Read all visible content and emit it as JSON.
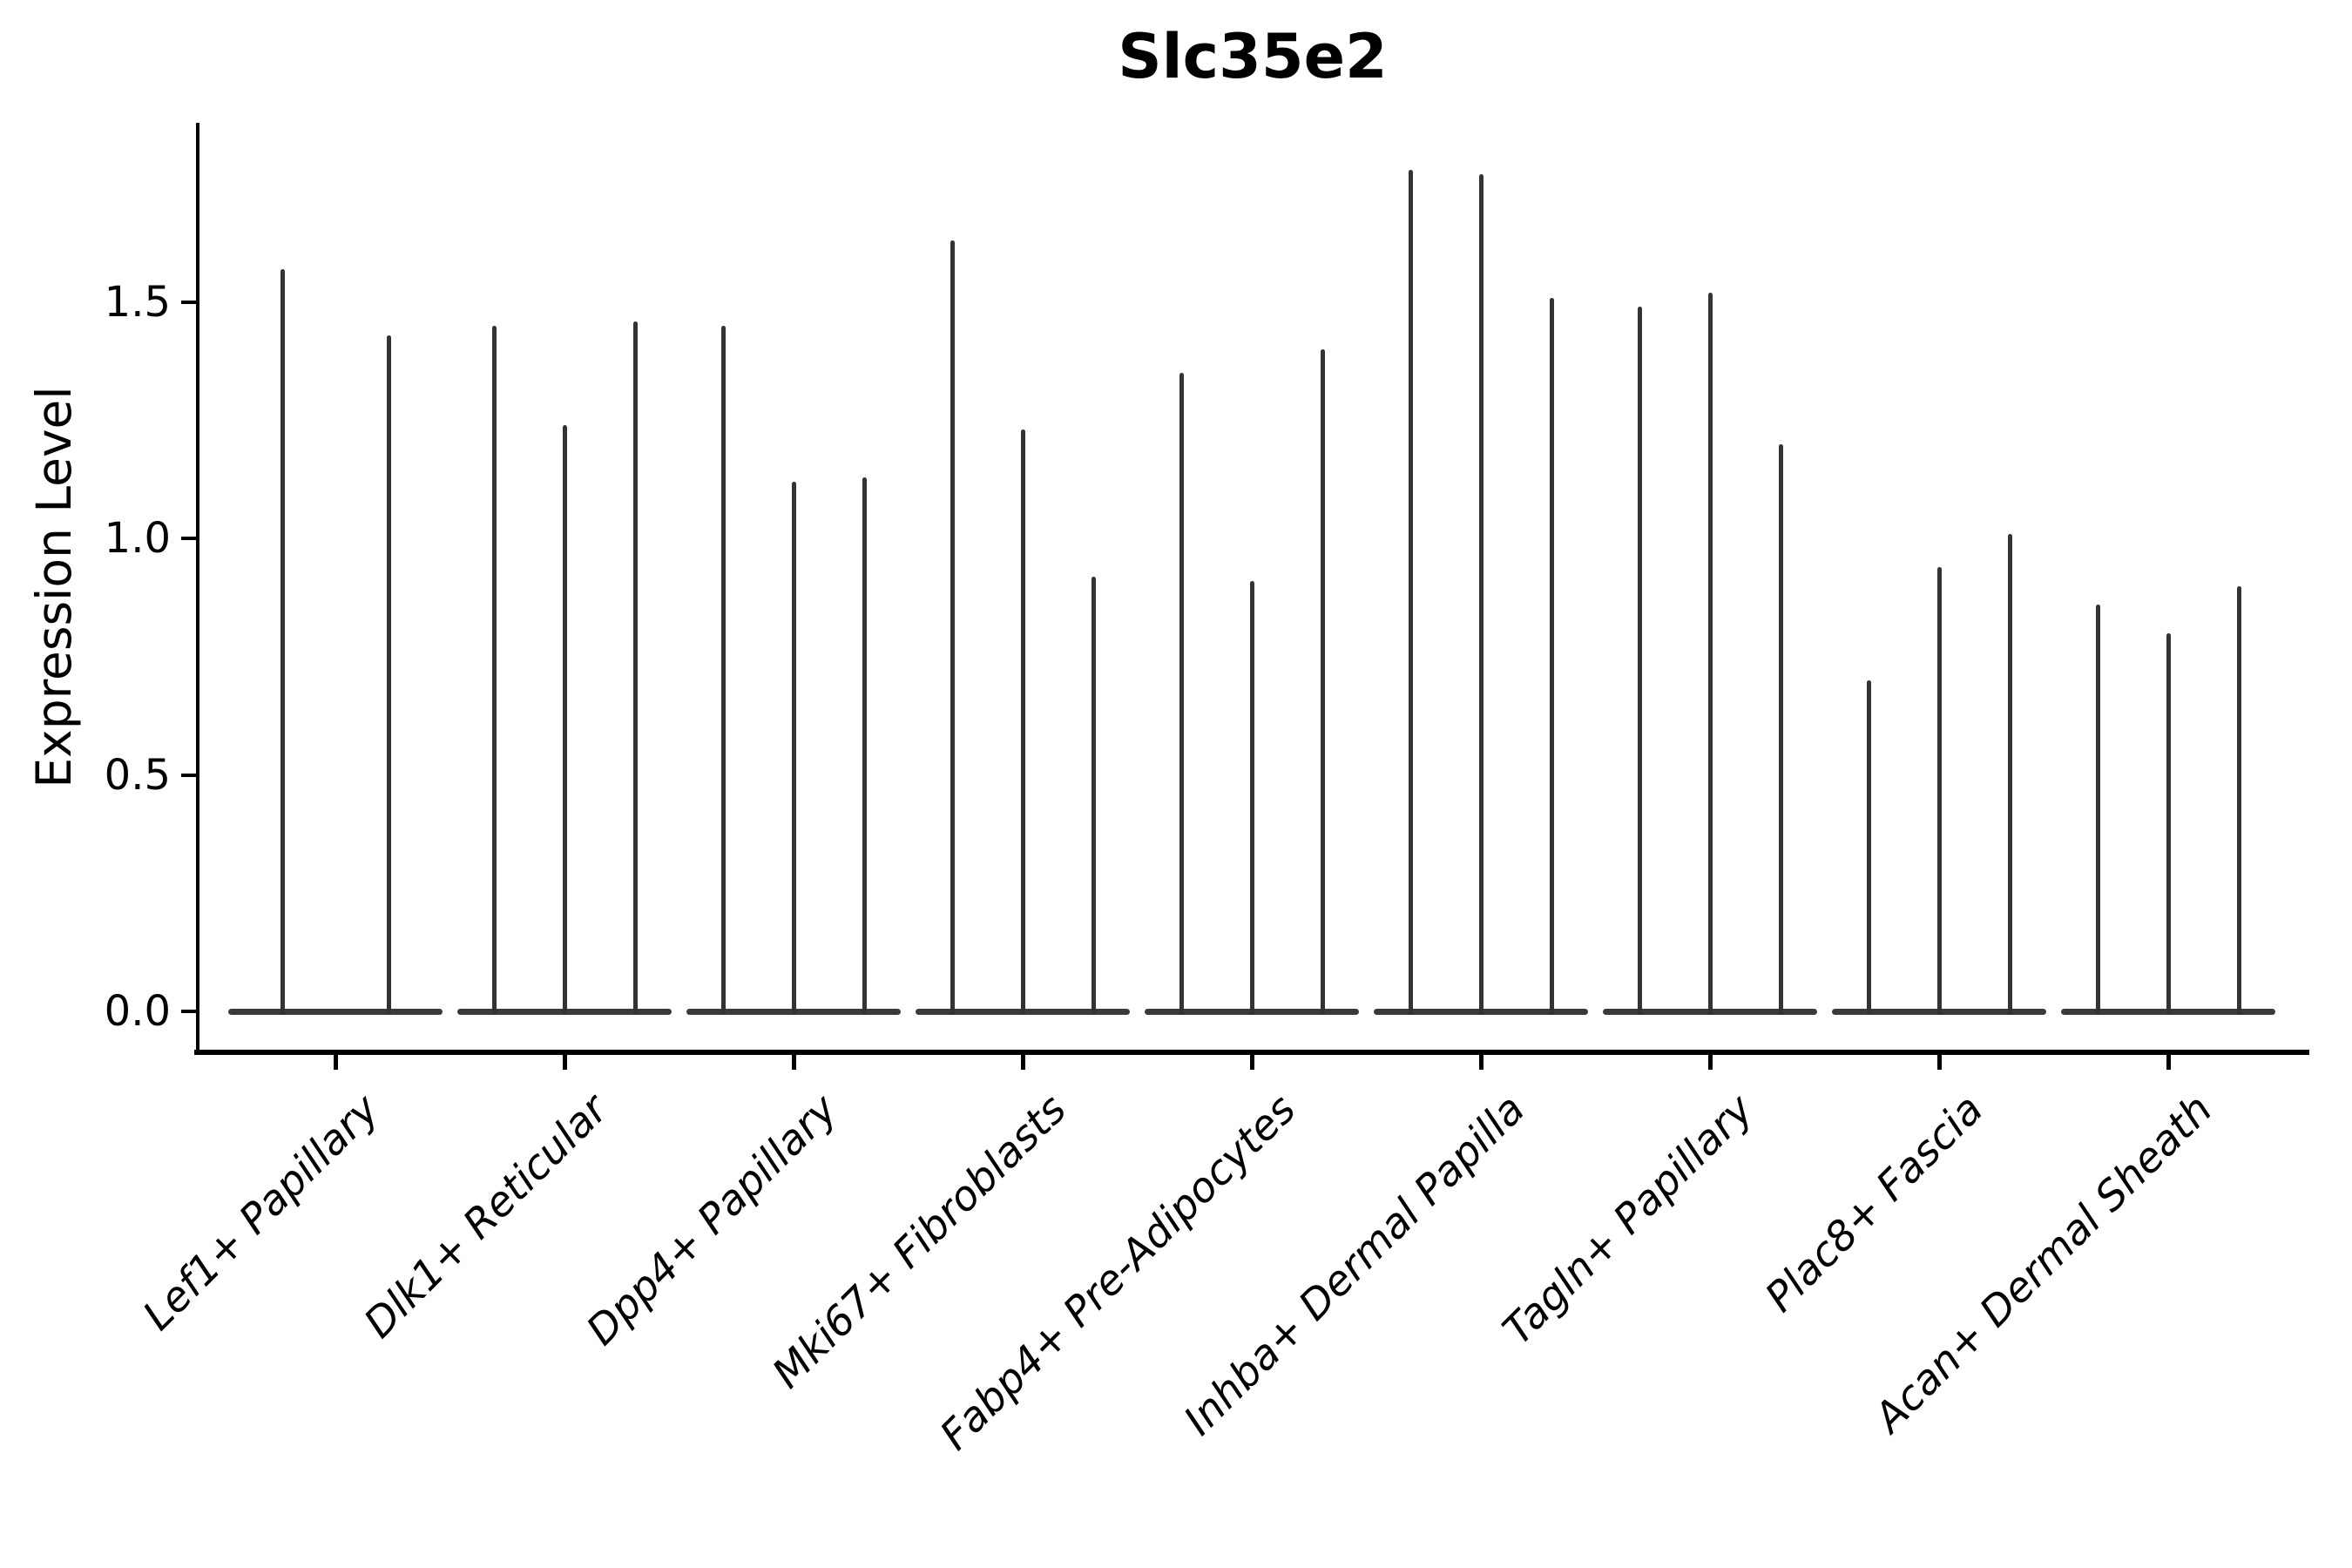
{
  "chart_data": {
    "type": "violin",
    "title": "Slc35e2",
    "xlabel": "",
    "ylabel": "Expression Level",
    "yticks": [
      {
        "value": 0.0,
        "label": "0.0"
      },
      {
        "value": 0.5,
        "label": "0.5"
      },
      {
        "value": 1.0,
        "label": "1.0"
      },
      {
        "value": 1.5,
        "label": "1.5"
      }
    ],
    "ylim": [
      -0.09,
      1.88
    ],
    "grid": false,
    "legend_position": "none",
    "x_tick_rotation_degrees": 45,
    "categories": [
      "Lef1+ Papillary",
      "Dlk1+ Reticular",
      "Dpp4+ Papillary",
      "Mki67+ Fibroblasts",
      "Fabp4+ Pre-Adipocytes",
      "Inhba+ Dermal Papilla",
      "Tagln+ Papillary",
      "Plac8+ Fascia",
      "Acan+ Dermal Sheath"
    ],
    "groups": [
      {
        "label": "Lef1+ Papillary",
        "violins": [
          {
            "offset": -61,
            "max": 1.57
          },
          {
            "offset": 61,
            "max": 1.43
          }
        ]
      },
      {
        "label": "Dlk1+ Reticular",
        "violins": [
          {
            "offset": -81,
            "max": 1.45
          },
          {
            "offset": 0,
            "max": 1.24
          },
          {
            "offset": 81,
            "max": 1.46
          }
        ]
      },
      {
        "label": "Dpp4+ Papillary",
        "violins": [
          {
            "offset": -81,
            "max": 1.45
          },
          {
            "offset": 0,
            "max": 1.12
          },
          {
            "offset": 81,
            "max": 1.13
          }
        ]
      },
      {
        "label": "Mki67+ Fibroblasts",
        "violins": [
          {
            "offset": -81,
            "max": 1.63
          },
          {
            "offset": 0,
            "max": 1.23
          },
          {
            "offset": 81,
            "max": 0.92
          }
        ]
      },
      {
        "label": "Fabp4+ Pre-Adipocytes",
        "violins": [
          {
            "offset": -81,
            "max": 1.35
          },
          {
            "offset": 0,
            "max": 0.91
          },
          {
            "offset": 81,
            "max": 1.4
          }
        ]
      },
      {
        "label": "Inhba+ Dermal Papilla",
        "violins": [
          {
            "offset": -81,
            "max": 1.78
          },
          {
            "offset": 0,
            "max": 1.77
          },
          {
            "offset": 81,
            "max": 1.51
          }
        ]
      },
      {
        "label": "Tagln+ Papillary",
        "violins": [
          {
            "offset": -81,
            "max": 1.49
          },
          {
            "offset": 0,
            "max": 1.52
          },
          {
            "offset": 81,
            "max": 1.2
          }
        ]
      },
      {
        "label": "Plac8+ Fascia",
        "violins": [
          {
            "offset": -81,
            "max": 0.7
          },
          {
            "offset": 0,
            "max": 0.94
          },
          {
            "offset": 81,
            "max": 1.01
          }
        ]
      },
      {
        "label": "Acan+ Dermal Sheath",
        "violins": [
          {
            "offset": -81,
            "max": 0.86
          },
          {
            "offset": 0,
            "max": 0.8
          },
          {
            "offset": 81,
            "max": 0.9
          }
        ]
      }
    ],
    "colors": {
      "violin": "#333333",
      "violin_base": "#3a3a3a",
      "axis": "#000000",
      "text": "#000000",
      "background": "#ffffff"
    }
  }
}
